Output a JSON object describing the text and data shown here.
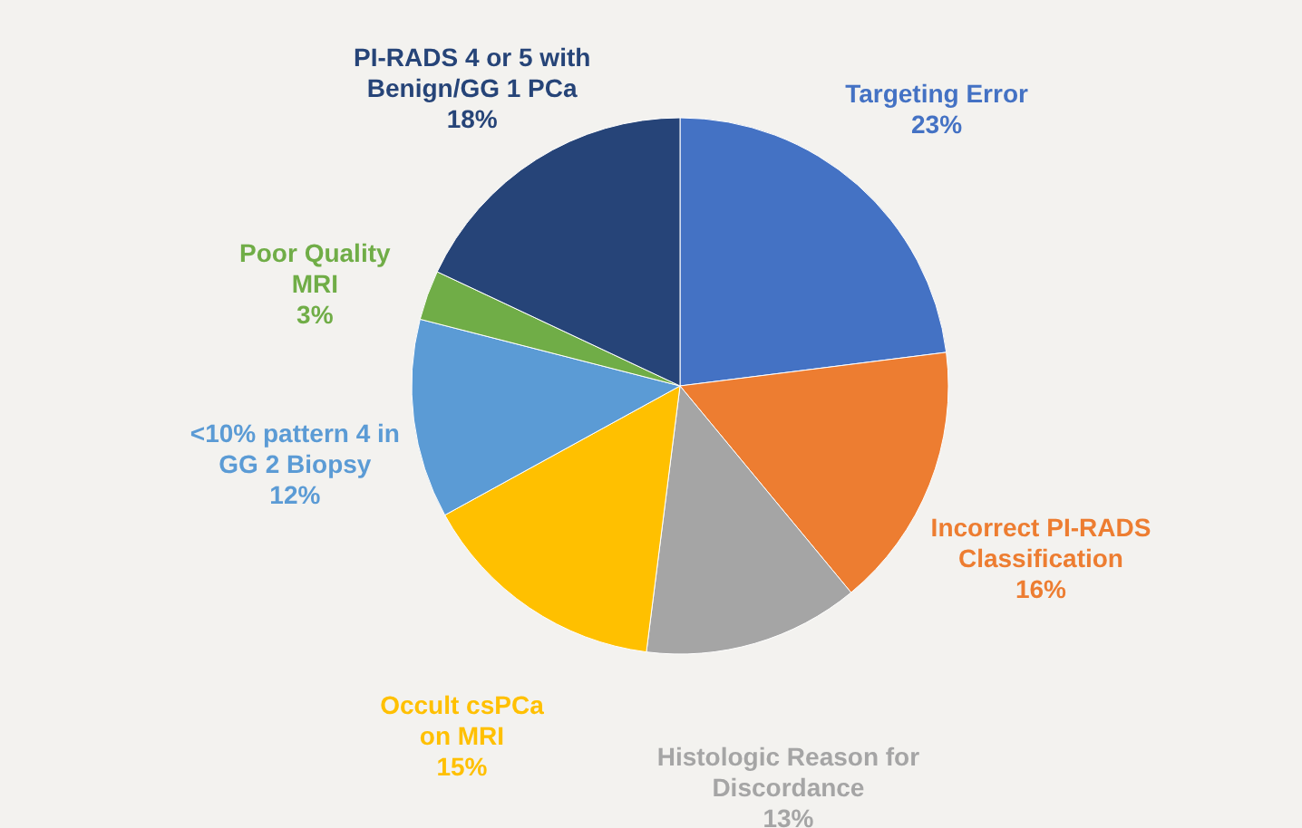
{
  "chart_data": {
    "type": "pie",
    "categories": [
      "Targeting Error",
      "Incorrect PI-RADS\nClassification",
      "Histologic Reason for\nDiscordance",
      "Occult csPCa\non MRI",
      "<10% pattern 4 in\nGG 2 Biopsy",
      "Poor Quality\nMRI",
      "PI-RADS 4 or 5 with\nBenign/GG 1 PCa"
    ],
    "values": [
      23,
      16,
      13,
      15,
      12,
      3,
      18
    ],
    "value_labels": [
      "23%",
      "16%",
      "13%",
      "15%",
      "12%",
      "3%",
      "18%"
    ],
    "colors": [
      "#4472c4",
      "#ed7d31",
      "#a5a5a5",
      "#ffc000",
      "#5b9bd5",
      "#70ad47",
      "#264478"
    ]
  }
}
